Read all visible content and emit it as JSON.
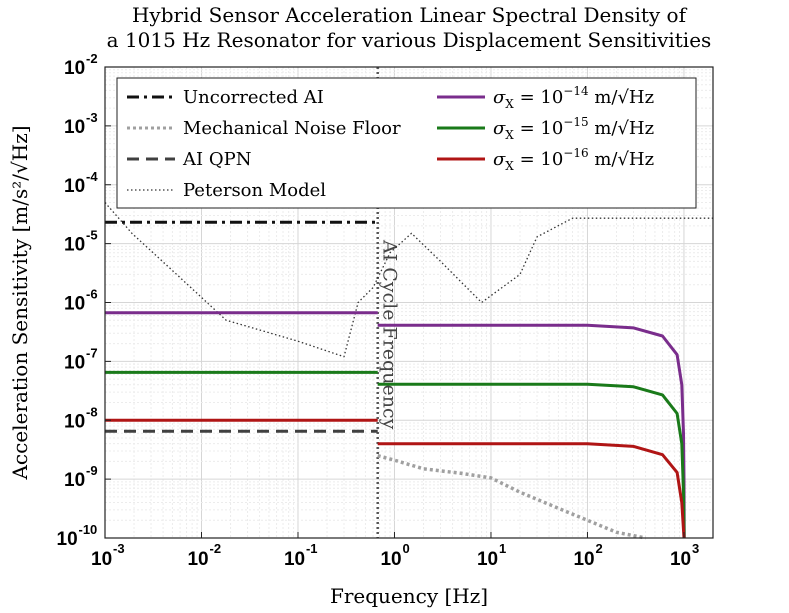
{
  "chart_data": {
    "type": "line",
    "title_lines": [
      "Hybrid Sensor Acceleration Linear Spectral Density of",
      "a 1015 Hz Resonator for various Displacement Sensitivities"
    ],
    "xlabel": "Frequency [Hz]",
    "ylabel": "Acceleration Sensitivity [m/s²/√Hz]",
    "xscale": "log",
    "yscale": "log",
    "xlim": [
      0.001,
      2000
    ],
    "ylim": [
      1e-10,
      0.01
    ],
    "grid": true,
    "x_ticks": [
      {
        "value": 0.001,
        "base": "10",
        "exp": "-3"
      },
      {
        "value": 0.01,
        "base": "10",
        "exp": "-2"
      },
      {
        "value": 0.1,
        "base": "10",
        "exp": "-1"
      },
      {
        "value": 1,
        "base": "10",
        "exp": "0"
      },
      {
        "value": 10,
        "base": "10",
        "exp": "1"
      },
      {
        "value": 100,
        "base": "10",
        "exp": "2"
      },
      {
        "value": 1000,
        "base": "10",
        "exp": "3"
      }
    ],
    "y_ticks": [
      {
        "value": 1e-10,
        "base": "10",
        "exp": "-10"
      },
      {
        "value": 1e-09,
        "base": "10",
        "exp": "-9"
      },
      {
        "value": 1e-08,
        "base": "10",
        "exp": "-8"
      },
      {
        "value": 1e-07,
        "base": "10",
        "exp": "-7"
      },
      {
        "value": 1e-06,
        "base": "10",
        "exp": "-6"
      },
      {
        "value": 1e-05,
        "base": "10",
        "exp": "-5"
      },
      {
        "value": 0.0001,
        "base": "10",
        "exp": "-4"
      },
      {
        "value": 0.001,
        "base": "10",
        "exp": "-3"
      },
      {
        "value": 0.01,
        "base": "10",
        "exp": "-2"
      }
    ],
    "vertical_line": {
      "x": 0.67,
      "label": "AI Cycle Frequency",
      "color": "#555555"
    },
    "legend": {
      "position": "top",
      "entries": [
        {
          "label": "Uncorrected AI",
          "style": "dashdot",
          "color": "#111111"
        },
        {
          "label": "Mechanical Noise Floor",
          "style": "dotted",
          "color": "#a0a0a0"
        },
        {
          "label": "AI QPN",
          "style": "dashed",
          "color": "#404040"
        },
        {
          "label": "Peterson Model",
          "style": "dotted-thin",
          "color": "#333333"
        },
        {
          "label": "σ",
          "sub": "X",
          "eq": " = 10",
          "exp": "−14",
          "unit": " m/√Hz",
          "color": "#7a2d8c"
        },
        {
          "label": "σ",
          "sub": "X",
          "eq": " = 10",
          "exp": "−15",
          "unit": " m/√Hz",
          "color": "#1a7a1a"
        },
        {
          "label": "σ",
          "sub": "X",
          "eq": " = 10",
          "exp": "−16",
          "unit": " m/√Hz",
          "color": "#b01515"
        }
      ]
    },
    "series": [
      {
        "name": "Uncorrected AI",
        "style": "dashdot",
        "color": "#111111",
        "width": 3,
        "points": [
          [
            0.001,
            2.3e-05
          ],
          [
            0.67,
            2.3e-05
          ]
        ]
      },
      {
        "name": "AI QPN",
        "style": "dashed",
        "color": "#404040",
        "width": 3,
        "points": [
          [
            0.001,
            6.5e-09
          ],
          [
            0.67,
            6.5e-09
          ]
        ]
      },
      {
        "name": "Mechanical Noise Floor",
        "style": "dotted",
        "color": "#a0a0a0",
        "width": 3.5,
        "points": [
          [
            0.67,
            2.5e-09
          ],
          [
            1,
            2.1e-09
          ],
          [
            2,
            1.5e-09
          ],
          [
            5,
            1.25e-09
          ],
          [
            10,
            1.05e-09
          ],
          [
            20,
            6e-10
          ],
          [
            50,
            3.2e-10
          ],
          [
            100,
            2e-10
          ],
          [
            200,
            1.25e-10
          ],
          [
            400,
            1e-10
          ]
        ]
      },
      {
        "name": "Peterson Model",
        "style": "dotted-thin",
        "color": "#333333",
        "width": 1.3,
        "points": [
          [
            0.001,
            5e-05
          ],
          [
            0.0019,
            1.5e-05
          ],
          [
            0.005,
            3.5e-06
          ],
          [
            0.018,
            5e-07
          ],
          [
            0.1,
            2.2e-07
          ],
          [
            0.3,
            1.2e-07
          ],
          [
            0.42,
            1e-06
          ],
          [
            0.6,
            1.8e-06
          ],
          [
            0.9,
            7e-06
          ],
          [
            1.5,
            1.5e-05
          ],
          [
            3,
            5e-06
          ],
          [
            8,
            1e-06
          ],
          [
            20,
            3e-06
          ],
          [
            30,
            1.3e-05
          ],
          [
            70,
            2.7e-05
          ],
          [
            2000,
            2.7e-05
          ]
        ]
      },
      {
        "name": "σX = 10^-14 m/√Hz (low)",
        "style": "solid",
        "color": "#7a2d8c",
        "width": 3,
        "points": [
          [
            0.001,
            6.7e-07
          ],
          [
            0.67,
            6.7e-07
          ]
        ]
      },
      {
        "name": "σX = 10^-14 m/√Hz (high)",
        "style": "solid",
        "color": "#7a2d8c",
        "width": 3,
        "points": [
          [
            0.67,
            4.1e-07
          ],
          [
            100,
            4.1e-07
          ],
          [
            300,
            3.7e-07
          ],
          [
            600,
            2.7e-07
          ],
          [
            850,
            1.3e-07
          ],
          [
            950,
            4e-08
          ],
          [
            990,
            6e-09
          ],
          [
            1000,
            1e-09
          ],
          [
            1005,
            1e-10
          ]
        ]
      },
      {
        "name": "σX = 10^-15 m/√Hz (low)",
        "style": "solid",
        "color": "#1a7a1a",
        "width": 3,
        "points": [
          [
            0.001,
            6.5e-08
          ],
          [
            0.67,
            6.5e-08
          ]
        ]
      },
      {
        "name": "σX = 10^-15 m/√Hz (high)",
        "style": "solid",
        "color": "#1a7a1a",
        "width": 3,
        "points": [
          [
            0.67,
            4.1e-08
          ],
          [
            100,
            4.1e-08
          ],
          [
            300,
            3.7e-08
          ],
          [
            600,
            2.7e-08
          ],
          [
            850,
            1.3e-08
          ],
          [
            950,
            4e-09
          ],
          [
            990,
            6e-10
          ],
          [
            1005,
            1e-10
          ]
        ]
      },
      {
        "name": "σX = 10^-16 m/√Hz (low)",
        "style": "solid",
        "color": "#b01515",
        "width": 3,
        "points": [
          [
            0.001,
            1e-08
          ],
          [
            0.67,
            1e-08
          ]
        ]
      },
      {
        "name": "σX = 10^-16 m/√Hz (high)",
        "style": "solid",
        "color": "#b01515",
        "width": 3,
        "points": [
          [
            0.67,
            4e-09
          ],
          [
            100,
            4e-09
          ],
          [
            300,
            3.6e-09
          ],
          [
            600,
            2.6e-09
          ],
          [
            850,
            1.3e-09
          ],
          [
            950,
            4e-10
          ],
          [
            1000,
            1e-10
          ]
        ]
      }
    ]
  }
}
